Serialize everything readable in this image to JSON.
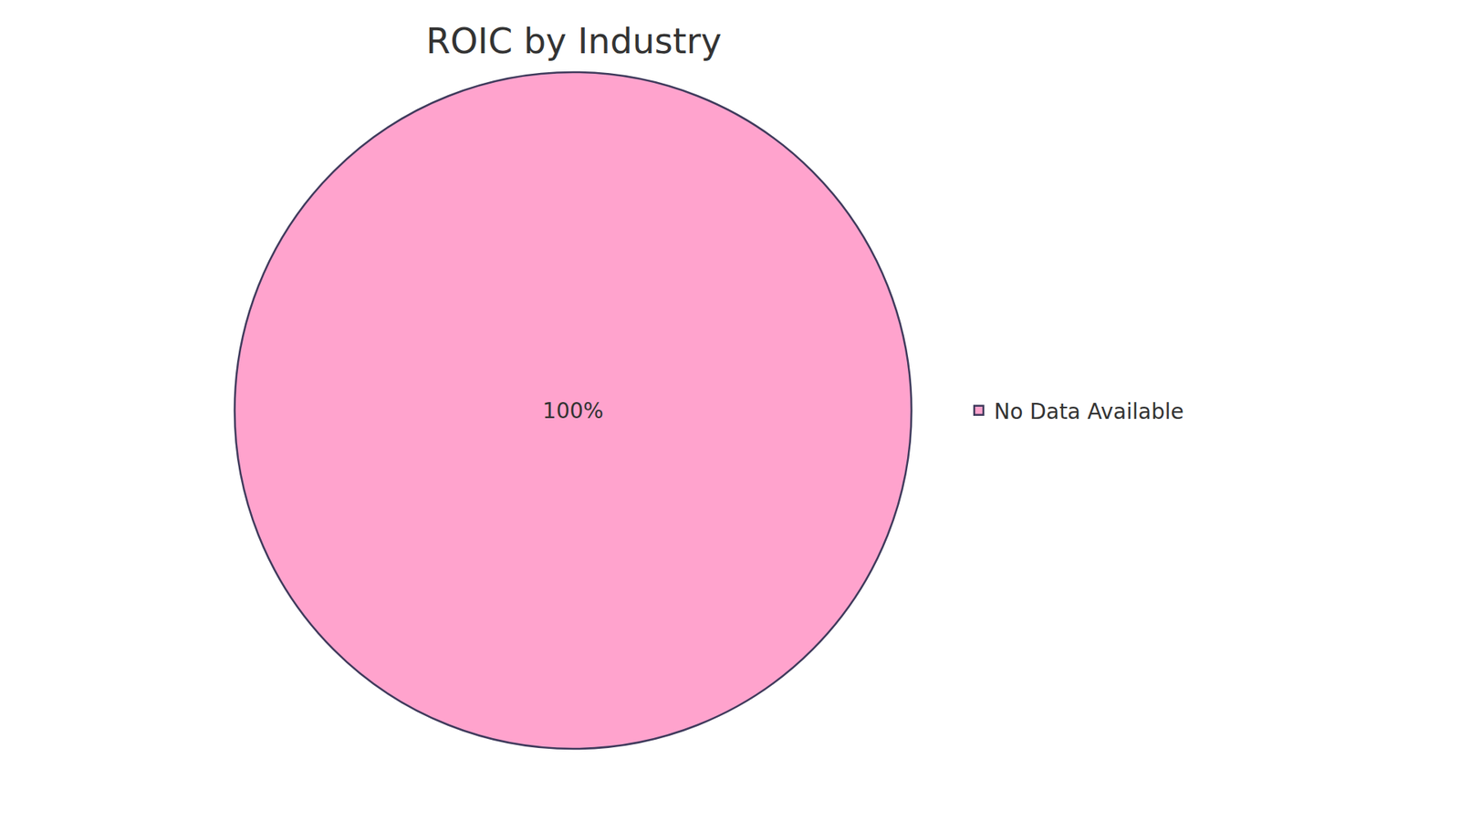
{
  "chart_data": {
    "type": "pie",
    "title": "ROIC by Industry",
    "categories": [
      "No Data Available"
    ],
    "values": [
      100
    ],
    "value_labels": [
      "100%"
    ],
    "colors": [
      "#ffa3cd"
    ],
    "data_labels": true,
    "legend": "right"
  }
}
